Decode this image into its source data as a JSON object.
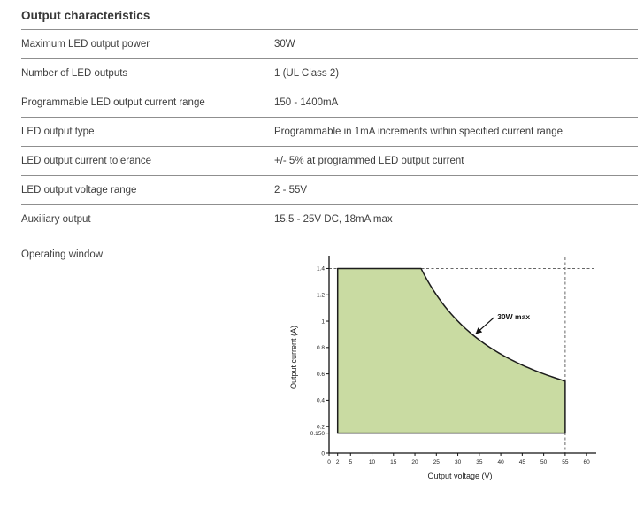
{
  "section": {
    "title": "Output characteristics"
  },
  "table": {
    "rows": [
      {
        "label": "Maximum LED output power",
        "value": "30W"
      },
      {
        "label": "Number of LED outputs",
        "value": "1 (UL Class 2)"
      },
      {
        "label": "Programmable LED output current range",
        "value": "150 - 1400mA"
      },
      {
        "label": "LED output type",
        "value": "Programmable in 1mA increments within specified current range"
      },
      {
        "label": "LED output current tolerance",
        "value": "+/- 5% at programmed LED output current"
      },
      {
        "label": "LED output voltage range",
        "value": "2 - 55V"
      },
      {
        "label": "Auxiliary output",
        "value": "15.5 - 25V DC, 18mA max"
      }
    ]
  },
  "operating_window": {
    "label": "Operating window"
  },
  "chart_data": {
    "type": "area",
    "title": "",
    "xlabel": "Output voltage (V)",
    "ylabel": "Output current (A)",
    "x_ticks": [
      "0",
      "2",
      "5",
      "10",
      "15",
      "20",
      "25",
      "30",
      "35",
      "40",
      "45",
      "50",
      "55",
      "60"
    ],
    "y_ticks": [
      "0",
      "0.150",
      "0.2",
      "0.4",
      "0.6",
      "0.8",
      "1",
      "1.2",
      "1.4"
    ],
    "xlim": [
      0,
      61
    ],
    "ylim": [
      0,
      1.45
    ],
    "annotation": "30W max",
    "region": {
      "v_min": 2,
      "v_max": 55,
      "i_min": 0.15,
      "i_max": 1.4,
      "power_max_w": 30,
      "curve_points_example": [
        [
          21.4,
          1.4
        ],
        [
          25,
          1.2
        ],
        [
          30,
          1.0
        ],
        [
          37.5,
          0.8
        ],
        [
          50,
          0.6
        ],
        [
          55,
          0.545
        ]
      ]
    },
    "dashed": {
      "i": 1.4,
      "v": 55
    },
    "fill_color": "#c9dba2",
    "grid": false,
    "legend": "none"
  }
}
